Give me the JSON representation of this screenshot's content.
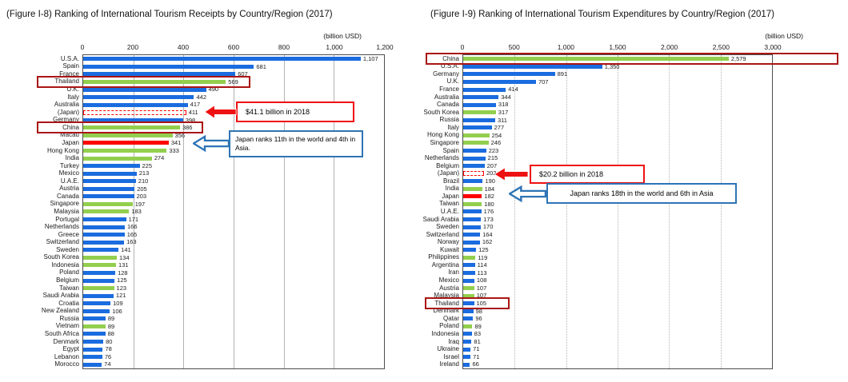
{
  "colors": {
    "bar_blue": "#1a6cdf",
    "bar_green": "#93cf4e",
    "bar_red": "#ff0000",
    "highlight_box_red": "#aa1515",
    "annotation_red": "#ee1111",
    "annotation_blue": "#2e74b5",
    "gridline": "#b3b3b3",
    "text": "#1a1a1a"
  },
  "charts": [
    {
      "id": "receipts",
      "title": "(Figure I-8) Ranking of International Tourism Receipts by Country/Region (2017)",
      "unit_label": "(billion USD)",
      "chart_data": {
        "type": "bar",
        "orientation": "horizontal",
        "xlim": [
          0,
          1200
        ],
        "x_ticks": [
          "0",
          "200",
          "400",
          "600",
          "800",
          "1,000",
          "1,200"
        ],
        "grid_style": "solid",
        "categories": [
          "U.S.A.",
          "Spain",
          "France",
          "Thailand",
          "U.K.",
          "Italy",
          "Australia",
          "(Japan)",
          "Germany",
          "China",
          "Macau",
          "Japan",
          "Hong Kong",
          "India",
          "Turkey",
          "Mexico",
          "U.A.E.",
          "Austria",
          "Canada",
          "Singapore",
          "Malaysia",
          "Portugal",
          "Netherlands",
          "Greece",
          "Switzerland",
          "Sweden",
          "South Korea",
          "Indonesia",
          "Poland",
          "Belgium",
          "Taiwan",
          "Saudi Arabia",
          "Croatia",
          "New Zealand",
          "Russia",
          "Vietnam",
          "South Africa",
          "Denmark",
          "Egypt",
          "Lebanon",
          "Morocco"
        ],
        "values": [
          1107,
          681,
          607,
          569,
          490,
          442,
          417,
          411,
          398,
          386,
          356,
          341,
          333,
          274,
          225,
          213,
          210,
          205,
          203,
          197,
          183,
          171,
          166,
          165,
          163,
          141,
          134,
          131,
          128,
          125,
          123,
          121,
          109,
          106,
          89,
          89,
          88,
          80,
          78,
          76,
          74
        ],
        "display_values": [
          "1,107",
          "681",
          "607",
          "569",
          "490",
          "442",
          "417",
          "411",
          "398",
          "386",
          "356",
          "341",
          "333",
          "274",
          "225",
          "213",
          "210",
          "205",
          "203",
          "197",
          "183",
          "171",
          "166",
          "165",
          "163",
          "141",
          "134",
          "131",
          "128",
          "125",
          "123",
          "121",
          "109",
          "106",
          "89",
          "89",
          "88",
          "80",
          "78",
          "76",
          "74"
        ],
        "bar_colors": [
          "blue",
          "blue",
          "blue",
          "green",
          "blue",
          "blue",
          "blue",
          "red_dashed",
          "blue",
          "green",
          "green",
          "red",
          "green",
          "green",
          "blue",
          "blue",
          "blue",
          "blue",
          "blue",
          "green",
          "green",
          "blue",
          "blue",
          "blue",
          "blue",
          "blue",
          "green",
          "green",
          "blue",
          "blue",
          "green",
          "blue",
          "blue",
          "blue",
          "blue",
          "green",
          "blue",
          "blue",
          "blue",
          "blue",
          "blue"
        ],
        "highlighted_categories": [
          "Thailand",
          "China"
        ]
      },
      "annotations": [
        {
          "style": "red",
          "text": "$41.1 billion in 2018",
          "target_category": "(Japan)"
        },
        {
          "style": "blue",
          "text": "Japan ranks 11th in the world and 4th in Asia.",
          "target_category": "Japan"
        }
      ]
    },
    {
      "id": "expenditures",
      "title": "(Figure I-9) Ranking of International Tourism Expenditures by Country/Region (2017)",
      "unit_label": "(billion USD)",
      "chart_data": {
        "type": "bar",
        "orientation": "horizontal",
        "xlim": [
          0,
          3000
        ],
        "x_ticks": [
          "0",
          "500",
          "1,000",
          "1,500",
          "2,000",
          "2,500",
          "3,000"
        ],
        "grid_style": "dotted",
        "categories": [
          "China",
          "U.S.A.",
          "Germany",
          "U.K.",
          "France",
          "Australia",
          "Canada",
          "South Korea",
          "Russia",
          "Italy",
          "Hong Kong",
          "Singapore",
          "Spain",
          "Netherlands",
          "Belgium",
          "(Japan)",
          "Brazil",
          "India",
          "Japan",
          "Taiwan",
          "U.A.E.",
          "Saudi Arabia",
          "Sweden",
          "Switzerland",
          "Norway",
          "Kuwait",
          "Philippines",
          "Argentina",
          "Iran",
          "Mexico",
          "Austria",
          "Malaysia",
          "Thailand",
          "Denmark",
          "Qatar",
          "Poland",
          "Indonesia",
          "Iraq",
          "Ukraine",
          "Israel",
          "Ireland"
        ],
        "values": [
          2579,
          1350,
          891,
          707,
          414,
          344,
          318,
          317,
          311,
          277,
          254,
          246,
          223,
          215,
          207,
          202,
          190,
          184,
          182,
          180,
          176,
          173,
          170,
          164,
          162,
          125,
          119,
          114,
          113,
          108,
          107,
          107,
          105,
          98,
          96,
          89,
          83,
          81,
          71,
          71,
          66
        ],
        "display_values": [
          "2,579",
          "1,350",
          "891",
          "707",
          "414",
          "344",
          "318",
          "317",
          "311",
          "277",
          "254",
          "246",
          "223",
          "215",
          "207",
          "202",
          "190",
          "184",
          "182",
          "180",
          "176",
          "173",
          "170",
          "164",
          "162",
          "125",
          "119",
          "114",
          "113",
          "108",
          "107",
          "107",
          "105",
          "98",
          "96",
          "89",
          "83",
          "81",
          "71",
          "71",
          "66"
        ],
        "bar_colors": [
          "green",
          "blue",
          "blue",
          "blue",
          "blue",
          "blue",
          "blue",
          "green",
          "blue",
          "blue",
          "green",
          "green",
          "blue",
          "blue",
          "blue",
          "red_dashed",
          "blue",
          "green",
          "red",
          "green",
          "blue",
          "blue",
          "blue",
          "blue",
          "blue",
          "blue",
          "green",
          "blue",
          "blue",
          "blue",
          "green",
          "green",
          "blue",
          "blue",
          "blue",
          "green",
          "blue",
          "blue",
          "blue",
          "blue",
          "blue"
        ],
        "highlighted_categories": [
          "China",
          "Thailand"
        ]
      },
      "annotations": [
        {
          "style": "red",
          "text": "$20.2 billion in 2018",
          "target_category": "(Japan)"
        },
        {
          "style": "blue",
          "text": "Japan ranks 18th in the world and 6th in Asia",
          "target_category": "Japan"
        }
      ]
    }
  ]
}
